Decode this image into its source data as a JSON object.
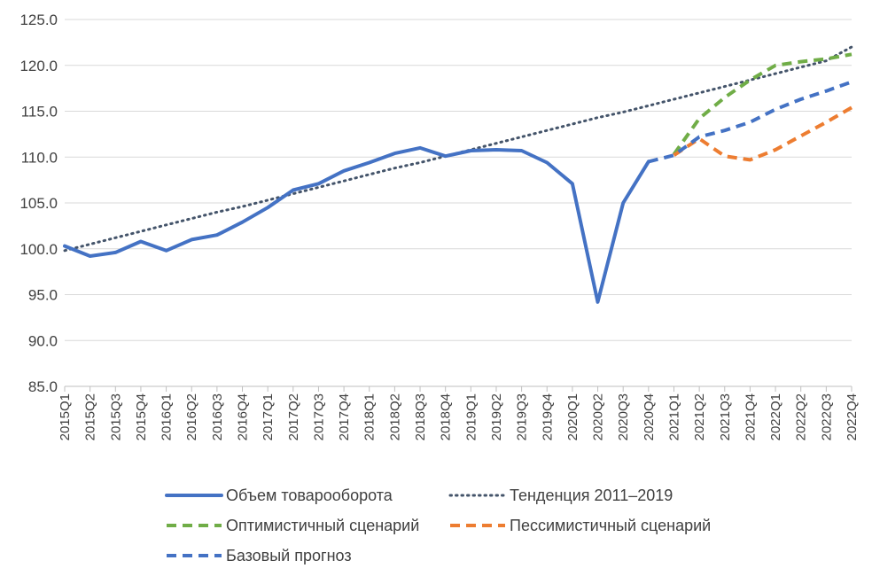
{
  "chart_data": {
    "type": "line",
    "title": "",
    "xlabel": "",
    "ylabel": "",
    "ylim": [
      85,
      125
    ],
    "yticks": [
      "125.0",
      "120.0",
      "115.0",
      "110.0",
      "105.0",
      "100.0",
      "95.0",
      "90.0",
      "85.0"
    ],
    "grid": "horizontal",
    "legend_position": "bottom",
    "categories": [
      "2015Q1",
      "2015Q2",
      "2015Q3",
      "2015Q4",
      "2016Q1",
      "2016Q2",
      "2016Q3",
      "2016Q4",
      "2017Q1",
      "2017Q2",
      "2017Q3",
      "2017Q4",
      "2018Q1",
      "2018Q2",
      "2018Q3",
      "2018Q4",
      "2019Q1",
      "2019Q2",
      "2019Q3",
      "2019Q4",
      "2020Q1",
      "2020Q2",
      "2020Q3",
      "2020Q4",
      "2021Q1",
      "2021Q2",
      "2021Q3",
      "2021Q4",
      "2022Q1",
      "2022Q2",
      "2022Q3",
      "2022Q4"
    ],
    "series": [
      {
        "name": "Объем товарооборота",
        "color": "#4472C4",
        "style": "solid",
        "values": [
          100.3,
          99.2,
          99.6,
          100.8,
          99.8,
          101.0,
          101.5,
          102.9,
          104.5,
          106.4,
          107.1,
          108.5,
          109.4,
          110.4,
          111.0,
          110.1,
          110.7,
          110.8,
          110.7,
          109.4,
          107.1,
          94.2,
          105.0,
          109.5,
          null,
          null,
          null,
          null,
          null,
          null,
          null,
          null
        ]
      },
      {
        "name": "Тенденция 2011–2019",
        "color": "#44546A",
        "style": "dotted",
        "values": [
          99.8,
          100.5,
          101.2,
          101.9,
          102.6,
          103.3,
          104.0,
          104.6,
          105.3,
          106.0,
          106.7,
          107.4,
          108.1,
          108.8,
          109.4,
          110.1,
          110.8,
          111.5,
          112.2,
          112.9,
          113.6,
          114.3,
          114.9,
          115.6,
          116.3,
          117.0,
          117.7,
          118.4,
          119.1,
          119.8,
          120.5,
          122.0
        ]
      },
      {
        "name": "Оптимистичный сценарий",
        "color": "#70AD47",
        "style": "dashed",
        "values": [
          null,
          null,
          null,
          null,
          null,
          null,
          null,
          null,
          null,
          null,
          null,
          null,
          null,
          null,
          null,
          null,
          null,
          null,
          null,
          null,
          null,
          null,
          null,
          null,
          110.3,
          114.2,
          116.5,
          118.4,
          120.0,
          120.4,
          120.7,
          121.2
        ]
      },
      {
        "name": "Пессимистичный сценарий",
        "color": "#ED7D31",
        "style": "dashed",
        "values": [
          null,
          null,
          null,
          null,
          null,
          null,
          null,
          null,
          null,
          null,
          null,
          null,
          null,
          null,
          null,
          null,
          null,
          null,
          null,
          null,
          null,
          null,
          null,
          null,
          110.2,
          112.0,
          110.1,
          109.7,
          110.8,
          112.3,
          113.8,
          115.4
        ]
      },
      {
        "name": "Базовый прогноз",
        "color": "#4472C4",
        "style": "dashed",
        "values": [
          null,
          null,
          null,
          null,
          null,
          null,
          null,
          null,
          null,
          null,
          null,
          null,
          null,
          null,
          null,
          null,
          null,
          null,
          null,
          null,
          null,
          null,
          null,
          109.5,
          110.2,
          112.2,
          112.9,
          113.8,
          115.2,
          116.3,
          117.2,
          118.2
        ]
      }
    ]
  }
}
